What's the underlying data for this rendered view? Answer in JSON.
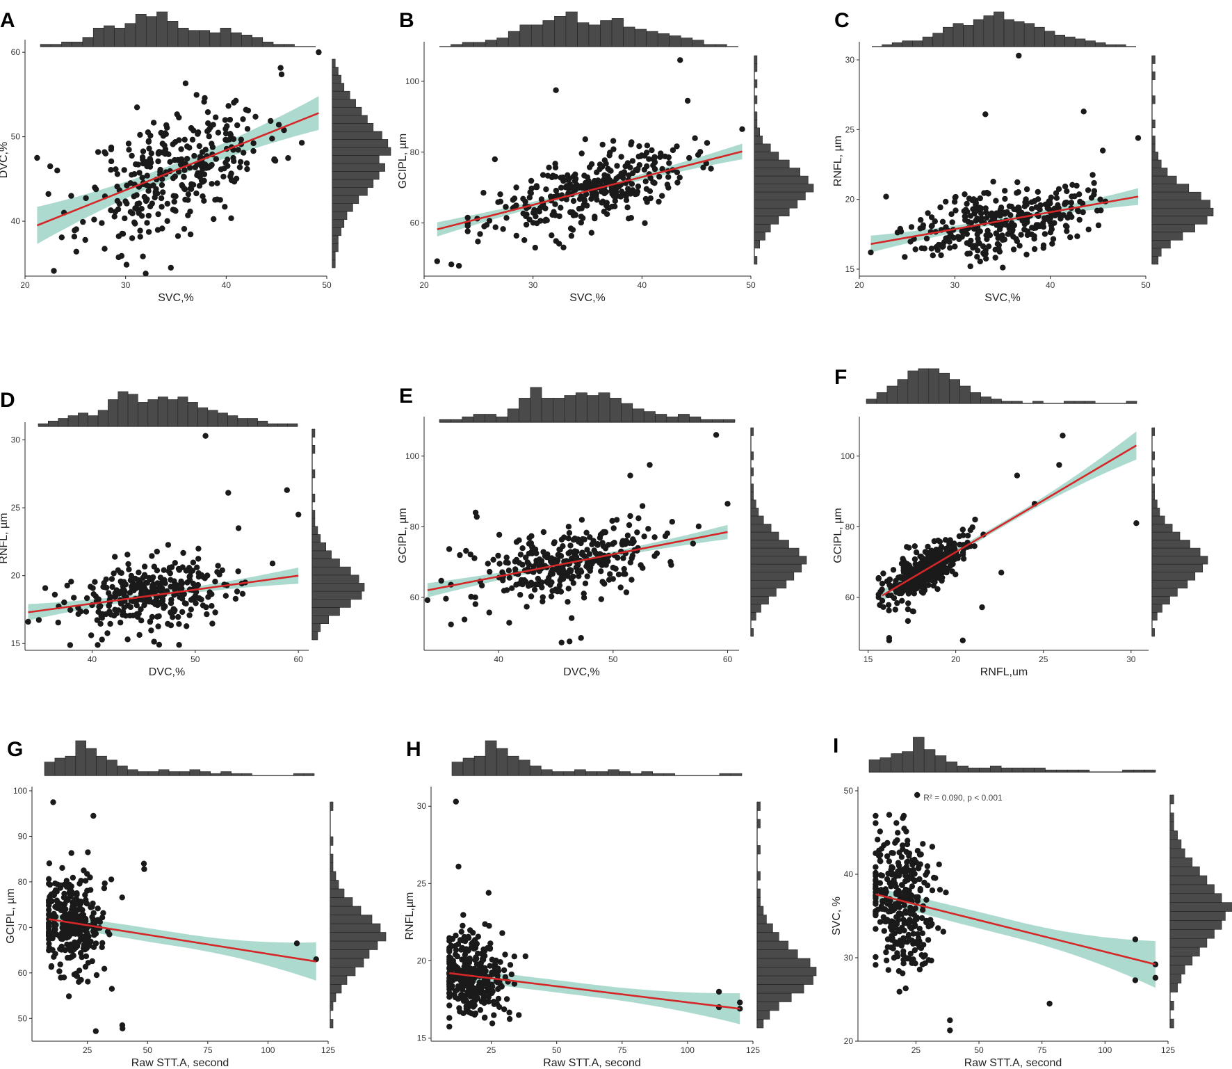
{
  "figure": {
    "colors": {
      "points": "#1a1a1a",
      "fit_line": "#d62728",
      "ci_band": "#9fd3c7",
      "histogram": "#4a4a4a",
      "axis": "#222222"
    }
  },
  "chart_data": [
    {
      "panel": "A",
      "type": "scatter",
      "xlabel": "SVC,%",
      "ylabel": "DVC,%",
      "xlim": [
        20,
        50
      ],
      "ylim": [
        33.5,
        61
      ],
      "xticks": [
        20,
        30,
        40,
        50
      ],
      "yticks": [
        40,
        50,
        60
      ],
      "fit": {
        "x0": 21.2,
        "y0": 39.5,
        "x1": 49.2,
        "y1": 52.8
      },
      "ci": [
        2.2,
        0.8,
        2.0
      ],
      "seed": 11,
      "n": 320,
      "x_center": 35,
      "x_spread": 4.5,
      "x_range": [
        22,
        49
      ],
      "noise": 3.6,
      "outliers": [
        [
          21.2,
          47.5
        ],
        [
          22.5,
          46.5
        ],
        [
          23.2,
          46
        ],
        [
          49.2,
          60
        ],
        [
          34.5,
          34.5
        ],
        [
          29.6,
          35.9
        ],
        [
          25.1,
          36.4
        ]
      ],
      "hist_top": [
        1,
        1,
        2,
        2,
        4,
        8,
        9,
        8,
        10,
        14,
        13,
        15,
        11,
        8,
        7,
        7,
        6,
        8,
        6,
        5,
        4,
        2,
        1,
        1,
        0,
        0
      ],
      "hist_right": [
        1,
        1,
        2,
        2,
        3,
        4,
        5,
        7,
        9,
        12,
        14,
        16,
        18,
        16,
        20,
        19,
        17,
        14,
        12,
        10,
        8,
        6,
        4,
        3,
        2,
        1
      ]
    },
    {
      "panel": "B",
      "type": "scatter",
      "xlabel": "SVC,%",
      "ylabel": "GCIPL, µm",
      "xlim": [
        20,
        50
      ],
      "ylim": [
        45,
        110
      ],
      "xticks": [
        20,
        30,
        40,
        50
      ],
      "yticks": [
        60,
        80,
        100
      ],
      "fit": {
        "x0": 21.2,
        "y0": 58.2,
        "x1": 49.2,
        "y1": 80.2
      },
      "ci": [
        2.0,
        0.7,
        2.2
      ],
      "seed": 23,
      "n": 330,
      "x_center": 35,
      "x_spread": 4.5,
      "x_range": [
        24,
        49
      ],
      "noise": 4.8,
      "outliers": [
        [
          21.2,
          49.2
        ],
        [
          22.5,
          48.3
        ],
        [
          23.2,
          47.9
        ],
        [
          32.1,
          97.5
        ],
        [
          43.5,
          106
        ],
        [
          44.2,
          94.5
        ],
        [
          49.2,
          86.5
        ],
        [
          26.5,
          78
        ]
      ],
      "hist_top": [
        0,
        1,
        2,
        2,
        3,
        4,
        7,
        10,
        10,
        12,
        14,
        16,
        11,
        10,
        12,
        13,
        9,
        8,
        7,
        6,
        5,
        4,
        3,
        1,
        1,
        0
      ],
      "hist_right": [
        1,
        0,
        2,
        4,
        6,
        9,
        13,
        16,
        19,
        22,
        20,
        17,
        13,
        9,
        6,
        3,
        2,
        1,
        1,
        0,
        1,
        0,
        1,
        0,
        1,
        1
      ]
    },
    {
      "panel": "C",
      "type": "scatter",
      "xlabel": "SVC,%",
      "ylabel": "RNFL, µm",
      "xlim": [
        20,
        50
      ],
      "ylim": [
        14.5,
        31
      ],
      "xticks": [
        20,
        30,
        40,
        50
      ],
      "yticks": [
        15,
        20,
        25,
        30
      ],
      "fit": {
        "x0": 21.2,
        "y0": 16.8,
        "x1": 49.2,
        "y1": 20.2
      },
      "ci": [
        0.6,
        0.2,
        0.6
      ],
      "seed": 37,
      "n": 330,
      "x_center": 35,
      "x_spread": 4.5,
      "x_range": [
        24,
        48
      ],
      "noise": 1.2,
      "outliers": [
        [
          21.2,
          16.2
        ],
        [
          22.8,
          20.2
        ],
        [
          36.7,
          30.3
        ],
        [
          33.2,
          26.1
        ],
        [
          43.5,
          26.3
        ],
        [
          49.2,
          24.4
        ],
        [
          45.5,
          23.5
        ]
      ],
      "hist_top": [
        0,
        1,
        2,
        3,
        3,
        5,
        7,
        10,
        12,
        11,
        14,
        16,
        18,
        14,
        13,
        12,
        10,
        8,
        6,
        5,
        4,
        3,
        2,
        1,
        1,
        0
      ],
      "hist_right": [
        2,
        3,
        6,
        10,
        14,
        18,
        20,
        19,
        16,
        12,
        8,
        5,
        3,
        2,
        1,
        1,
        0,
        1,
        0,
        0,
        1,
        0,
        0,
        1,
        0,
        1
      ]
    },
    {
      "panel": "D",
      "type": "scatter",
      "xlabel": "DVC,%",
      "ylabel": "RNFL, µm",
      "xlim": [
        33.5,
        61
      ],
      "ylim": [
        14.5,
        31
      ],
      "xticks": [
        40,
        50,
        60
      ],
      "yticks": [
        15,
        20,
        25,
        30
      ],
      "fit": {
        "x0": 33.8,
        "y0": 17.3,
        "x1": 60,
        "y1": 20
      },
      "ci": [
        0.6,
        0.2,
        0.6
      ],
      "seed": 53,
      "n": 320,
      "x_center": 46,
      "x_spread": 4.2,
      "x_range": [
        34,
        59
      ],
      "noise": 1.3,
      "outliers": [
        [
          51,
          30.3
        ],
        [
          53.2,
          26.1
        ],
        [
          58.9,
          26.3
        ],
        [
          60,
          24.5
        ],
        [
          54.2,
          23.5
        ],
        [
          33.8,
          16.6
        ]
      ],
      "hist_top": [
        1,
        2,
        3,
        4,
        5,
        4,
        6,
        10,
        13,
        12,
        9,
        10,
        11,
        10,
        11,
        9,
        7,
        6,
        5,
        4,
        3,
        3,
        2,
        1,
        1,
        1
      ],
      "hist_right": [
        2,
        3,
        6,
        10,
        14,
        18,
        19,
        17,
        14,
        10,
        7,
        5,
        3,
        2,
        1,
        1,
        0,
        1,
        0,
        0,
        1,
        0,
        0,
        1,
        0,
        1
      ]
    },
    {
      "panel": "E",
      "type": "scatter",
      "xlabel": "DVC,%",
      "ylabel": "GCIPL, µm",
      "xlim": [
        33.5,
        61
      ],
      "ylim": [
        45,
        110
      ],
      "xticks": [
        40,
        50,
        60
      ],
      "yticks": [
        60,
        80,
        100
      ],
      "fit": {
        "x0": 33.8,
        "y0": 62,
        "x1": 60,
        "y1": 78.5
      },
      "ci": [
        2.0,
        0.7,
        2.0
      ],
      "seed": 71,
      "n": 330,
      "x_center": 46,
      "x_spread": 4.2,
      "x_range": [
        35,
        59
      ],
      "noise": 5,
      "outliers": [
        [
          38,
          84
        ],
        [
          38.1,
          82.8
        ],
        [
          45.5,
          47.2
        ],
        [
          46.2,
          47.5
        ],
        [
          47.2,
          48.5
        ],
        [
          59,
          106
        ],
        [
          53.2,
          97.5
        ],
        [
          51.5,
          94.5
        ],
        [
          60,
          86.5
        ],
        [
          33.8,
          59.2
        ]
      ],
      "hist_top": [
        1,
        1,
        2,
        3,
        3,
        2,
        5,
        9,
        13,
        9,
        9,
        10,
        11,
        10,
        11,
        9,
        7,
        5,
        4,
        3,
        2,
        3,
        2,
        1,
        1,
        1
      ],
      "hist_right": [
        1,
        0,
        2,
        4,
        7,
        10,
        14,
        17,
        20,
        22,
        19,
        15,
        11,
        8,
        5,
        3,
        2,
        1,
        1,
        0,
        1,
        0,
        1,
        0,
        0,
        1
      ]
    },
    {
      "panel": "F",
      "type": "scatter",
      "xlabel": "RNFL,um",
      "ylabel": "GCIPL, µm",
      "xlim": [
        14.5,
        31
      ],
      "ylim": [
        45,
        110
      ],
      "xticks": [
        15,
        20,
        25,
        30
      ],
      "yticks": [
        60,
        80,
        100
      ],
      "fit": {
        "x0": 15.8,
        "y0": 60.5,
        "x1": 30.3,
        "y1": 103
      },
      "ci": [
        1.6,
        0.7,
        4.0
      ],
      "seed": 89,
      "n": 340,
      "x_center": 18.3,
      "x_spread": 1.2,
      "x_range": [
        15.6,
        22.5
      ],
      "noise": 3.2,
      "outliers": [
        [
          16.2,
          48.5
        ],
        [
          16.2,
          47.8
        ],
        [
          20.4,
          47.8
        ],
        [
          21.5,
          57.2
        ],
        [
          22.6,
          67
        ],
        [
          26.1,
          105.8
        ],
        [
          25.9,
          97.5
        ],
        [
          23.5,
          94.5
        ],
        [
          24.5,
          86.5
        ],
        [
          30.3,
          81
        ]
      ],
      "hist_top": [
        2,
        5,
        8,
        11,
        15,
        16,
        16,
        14,
        11,
        8,
        5,
        3,
        2,
        1,
        1,
        0,
        1,
        0,
        0,
        1,
        1,
        1,
        0,
        0,
        0,
        1
      ],
      "hist_right": [
        1,
        0,
        2,
        4,
        7,
        10,
        14,
        17,
        20,
        22,
        19,
        15,
        11,
        8,
        5,
        3,
        2,
        1,
        1,
        0,
        1,
        0,
        1,
        0,
        0,
        1
      ]
    },
    {
      "panel": "G",
      "type": "scatter",
      "xlabel": "Raw STT.A,  second",
      "ylabel": "GCIPL, µm",
      "xlim": [
        2,
        125
      ],
      "ylim": [
        45,
        100
      ],
      "xticks": [
        25,
        50,
        75,
        100,
        125
      ],
      "yticks": [
        50,
        60,
        70,
        80,
        90,
        100
      ],
      "fit": {
        "x0": 9,
        "y0": 71.8,
        "x1": 120,
        "y1": 62.5
      },
      "ci": [
        1.2,
        1.5,
        4.2
      ],
      "seed": 97,
      "n": 320,
      "x_center": 18,
      "x_spread": 7,
      "x_range": [
        9,
        70
      ],
      "noise": 5.5,
      "outliers": [
        [
          10.8,
          97.5
        ],
        [
          27.5,
          94.5
        ],
        [
          25.2,
          86.5
        ],
        [
          48.5,
          84
        ],
        [
          48.6,
          82.8
        ],
        [
          28.5,
          47.2
        ],
        [
          39.5,
          48.5
        ],
        [
          39.6,
          47.8
        ],
        [
          112,
          66.5
        ],
        [
          120,
          63
        ]
      ],
      "hist_top": [
        7,
        9,
        10,
        18,
        14,
        10,
        8,
        5,
        3,
        2,
        2,
        3,
        2,
        2,
        3,
        2,
        1,
        2,
        1,
        1,
        0,
        0,
        0,
        0,
        1,
        1
      ],
      "hist_right": [
        1,
        0,
        1,
        2,
        4,
        6,
        9,
        12,
        14,
        17,
        20,
        18,
        15,
        11,
        8,
        5,
        3,
        2,
        1,
        1,
        0,
        1,
        0,
        0,
        0,
        1
      ]
    },
    {
      "panel": "H",
      "type": "scatter",
      "xlabel": "Raw STT.A,  second",
      "ylabel": "RNFL,µm",
      "xlim": [
        2,
        125
      ],
      "ylim": [
        14.8,
        31
      ],
      "xticks": [
        25,
        50,
        75,
        100,
        125
      ],
      "yticks": [
        15,
        20,
        25,
        30
      ],
      "fit": {
        "x0": 9,
        "y0": 19.2,
        "x1": 120,
        "y1": 16.9
      },
      "ci": [
        0.4,
        0.4,
        1.0
      ],
      "seed": 113,
      "n": 320,
      "x_center": 18,
      "x_spread": 7,
      "x_range": [
        9,
        70
      ],
      "noise": 1.4,
      "outliers": [
        [
          11.5,
          30.3
        ],
        [
          12.5,
          26.1
        ],
        [
          24,
          24.4
        ],
        [
          112,
          18
        ],
        [
          112,
          17
        ],
        [
          120,
          17.3
        ],
        [
          120,
          16.9
        ]
      ],
      "hist_top": [
        7,
        9,
        10,
        18,
        14,
        10,
        8,
        5,
        3,
        2,
        2,
        3,
        2,
        2,
        3,
        2,
        1,
        2,
        1,
        1,
        0,
        0,
        0,
        0,
        1,
        1
      ],
      "hist_right": [
        2,
        4,
        7,
        11,
        15,
        18,
        19,
        17,
        13,
        10,
        7,
        5,
        3,
        2,
        1,
        1,
        0,
        1,
        0,
        0,
        1,
        0,
        0,
        1,
        0,
        1
      ]
    },
    {
      "panel": "I",
      "type": "scatter",
      "xlabel": "Raw STT.A, second",
      "ylabel": "SVC, %",
      "xlim": [
        2,
        125
      ],
      "ylim": [
        20,
        50
      ],
      "xticks": [
        25,
        50,
        75,
        100,
        125
      ],
      "yticks": [
        20,
        30,
        40,
        50
      ],
      "fit": {
        "x0": 9,
        "y0": 37.6,
        "x1": 120,
        "y1": 29.2
      },
      "ci": [
        0.8,
        1.0,
        2.8
      ],
      "annotation": "R² = 0.090, p < 0.001",
      "seed": 131,
      "n": 320,
      "x_center": 18,
      "x_spread": 7,
      "x_range": [
        9,
        72
      ],
      "noise": 4.2,
      "outliers": [
        [
          25.5,
          49.5
        ],
        [
          38.5,
          21.3
        ],
        [
          38.5,
          22.5
        ],
        [
          78,
          24.5
        ],
        [
          112,
          32.2
        ],
        [
          112,
          27.3
        ],
        [
          120,
          29.2
        ],
        [
          120,
          27.6
        ]
      ],
      "hist_top": [
        6,
        7,
        9,
        10,
        17,
        11,
        8,
        5,
        3,
        2,
        2,
        3,
        2,
        2,
        2,
        2,
        1,
        1,
        1,
        1,
        0,
        0,
        0,
        1,
        1,
        1
      ],
      "hist_right": [
        1,
        0,
        1,
        0,
        2,
        3,
        4,
        6,
        8,
        10,
        12,
        14,
        15,
        17,
        14,
        12,
        10,
        8,
        6,
        4,
        3,
        2,
        1,
        1,
        0,
        1
      ]
    }
  ]
}
